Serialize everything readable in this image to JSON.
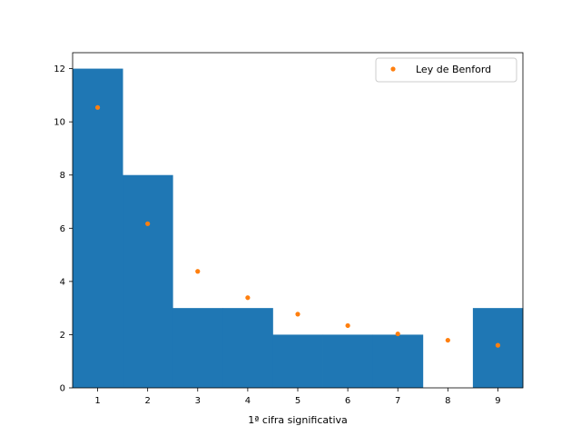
{
  "chart_data": {
    "type": "bar",
    "categories": [
      "1",
      "2",
      "3",
      "4",
      "5",
      "6",
      "7",
      "8",
      "9"
    ],
    "x": [
      1,
      2,
      3,
      4,
      5,
      6,
      7,
      8,
      9
    ],
    "values": [
      12,
      8,
      3,
      3,
      2,
      2,
      2,
      0,
      3
    ],
    "series": [
      {
        "name": "",
        "kind": "bar",
        "values": [
          12,
          8,
          3,
          3,
          2,
          2,
          2,
          0,
          3
        ]
      },
      {
        "name": "Ley de Benford",
        "kind": "points",
        "values": [
          10.54,
          6.17,
          4.38,
          3.39,
          2.77,
          2.34,
          2.03,
          1.79,
          1.6
        ]
      }
    ],
    "title": "",
    "xlabel": "1ª cifra significativa",
    "ylabel": "",
    "xlim": [
      0.5,
      9.5
    ],
    "ylim": [
      0,
      12.6
    ],
    "xticks": [
      "1",
      "2",
      "3",
      "4",
      "5",
      "6",
      "7",
      "8",
      "9"
    ],
    "yticks": [
      "0",
      "2",
      "4",
      "6",
      "8",
      "10",
      "12"
    ],
    "grid": false,
    "legend": {
      "entries": [
        "Ley de Benford"
      ],
      "placement": "top-right"
    },
    "colors": {
      "bars": "#1f77b4",
      "points": "#ff7f0e"
    }
  }
}
